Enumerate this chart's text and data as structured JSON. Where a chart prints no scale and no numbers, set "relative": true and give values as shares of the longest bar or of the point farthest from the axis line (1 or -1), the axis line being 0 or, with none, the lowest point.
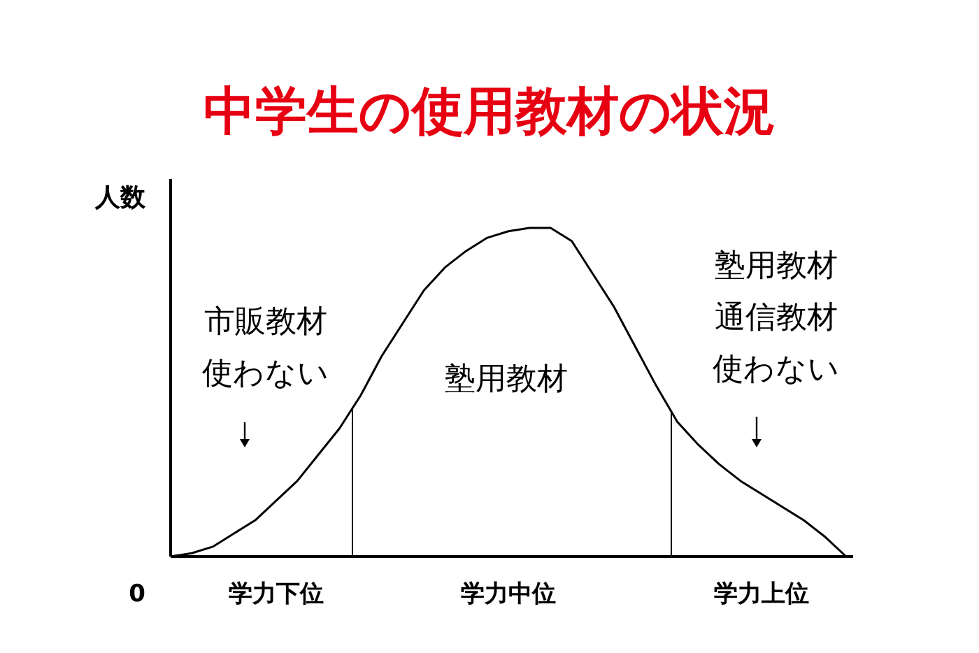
{
  "chart_data": {
    "type": "line",
    "title": "中学生の使用教材の状況",
    "ylabel": "人数",
    "relative": true,
    "tick_labels": "x",
    "marker": "none",
    "line_style": "solid",
    "categories": [
      null,
      null,
      null,
      null,
      null,
      "学力下位",
      null,
      null,
      null,
      null,
      null,
      null,
      null,
      null,
      null,
      null,
      "学力中位",
      null,
      null,
      null,
      null,
      null,
      null,
      null,
      null,
      null,
      null,
      null,
      "学力上位",
      null,
      null,
      null,
      null
    ],
    "series": [
      {
        "color": "#000000",
        "values": [
          0,
          0.01,
          0.03,
          0.07,
          0.11,
          0.17,
          0.23,
          0.31,
          0.39,
          0.49,
          0.61,
          0.71,
          0.81,
          0.88,
          0.93,
          0.97,
          0.99,
          1,
          1,
          0.96,
          0.86,
          0.76,
          0.64,
          0.52,
          0.41,
          0.34,
          0.28,
          0.23,
          0.19,
          0.15,
          0.11,
          0.06,
          0
        ]
      }
    ],
    "annotations": [
      "市販教材使わない",
      "塾用教材",
      "塾用教材通信教材使わない",
      "0"
    ]
  }
}
